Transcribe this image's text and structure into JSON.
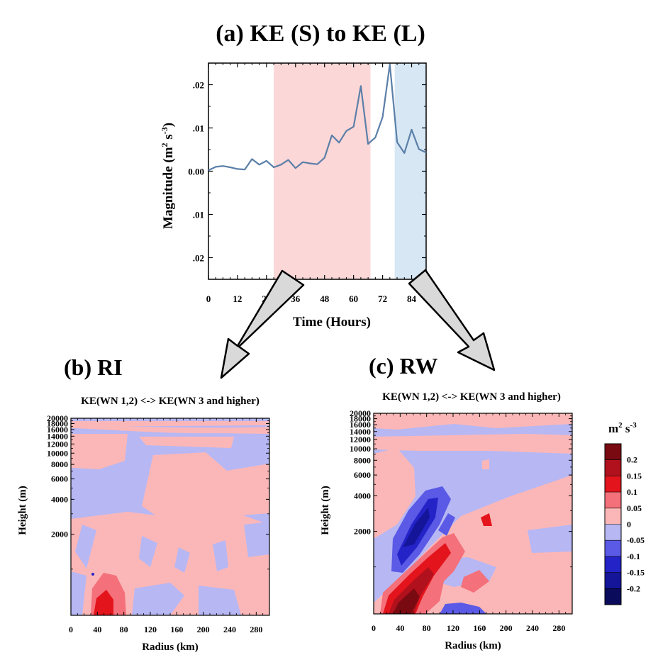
{
  "chart_data": [
    {
      "panel": "a",
      "type": "line",
      "title": "(a) KE (S) to KE (L)",
      "xlabel": "Time (Hours)",
      "ylabel": "Magnitude (m",
      "ylabel_sup1": "2",
      "ylabel_mid": " s",
      "ylabel_sup2": "-3",
      "ylabel_end": ")",
      "xlim": [
        0,
        90
      ],
      "ylim": [
        -0.025,
        0.025
      ],
      "x_ticks": [
        0,
        12,
        24,
        36,
        48,
        60,
        72,
        84
      ],
      "x_tick_labels": [
        "0",
        "12",
        "24",
        "36",
        "48",
        "60",
        "72",
        "84"
      ],
      "y_ticks": [
        0.02,
        0.01,
        0.0,
        -0.01,
        -0.02
      ],
      "y_tick_labels": [
        ".02",
        ".01",
        "0.00",
        ".01",
        ".02"
      ],
      "shaded_periods": [
        {
          "name": "RI",
          "x": [
            27,
            67
          ],
          "color": "#fcd7d7"
        },
        {
          "name": "RW",
          "x": [
            77,
            90
          ],
          "color": "#d7e7f4"
        }
      ],
      "line_color": "#5b7fa8",
      "x": [
        0,
        3,
        6,
        9,
        12,
        15,
        18,
        21,
        24,
        27,
        30,
        33,
        36,
        39,
        42,
        45,
        48,
        51,
        54,
        57,
        60,
        63,
        66,
        69,
        72,
        75,
        78,
        81,
        84,
        87,
        90
      ],
      "y": [
        0.0002,
        0.001,
        0.0012,
        0.0009,
        0.0005,
        0.0004,
        0.0028,
        0.0015,
        0.0024,
        0.0009,
        0.0015,
        0.0026,
        0.0007,
        0.0021,
        0.0018,
        0.0016,
        0.0031,
        0.0083,
        0.0066,
        0.0093,
        0.0103,
        0.0197,
        0.0063,
        0.0078,
        0.0125,
        0.0247,
        0.0067,
        0.0042,
        0.0096,
        0.0051,
        0.0043
      ]
    },
    {
      "panel": "b",
      "type": "heatmap",
      "title": "(b) RI",
      "subtitle": "KE(WN 1,2) <-> KE(WN 3 and higher)",
      "xlabel": "Radius (km)",
      "ylabel": "Height (m)",
      "x_tick_labels": [
        "0",
        "40",
        "80",
        "120",
        "160",
        "200",
        "240",
        "280"
      ],
      "y_tick_labels": [
        "2000",
        "4000",
        "6000",
        "8000",
        "10000",
        "12000",
        "14000",
        "16000",
        "18000",
        "20000"
      ]
    },
    {
      "panel": "c",
      "type": "heatmap",
      "title": "(c) RW",
      "subtitle": "KE(WN 1,2) <-> KE(WN 3 and higher)",
      "xlabel": "Radius (km)",
      "ylabel": "Height (m)",
      "x_tick_labels": [
        "0",
        "40",
        "80",
        "120",
        "160",
        "200",
        "240",
        "280"
      ],
      "y_tick_labels": [
        "2000",
        "4000",
        "6000",
        "8000",
        "10000",
        "12000",
        "14000",
        "16000",
        "18000",
        "20000"
      ]
    }
  ],
  "colorbar": {
    "unit_base": "m",
    "unit_sup1": "2",
    "unit_mid": " s",
    "unit_sup2": "-3",
    "labels": [
      "0.2",
      "0.15",
      "0.1",
      "0.05",
      "0",
      "-0.05",
      "-0.1",
      "-0.15",
      "-0.2"
    ],
    "colors": [
      "#7a0a12",
      "#b1111c",
      "#e3141c",
      "#f4707a",
      "#fbb7b7",
      "#b7b7f4",
      "#5a5ae6",
      "#2323c8",
      "#15159a",
      "#0b0b5c"
    ]
  }
}
